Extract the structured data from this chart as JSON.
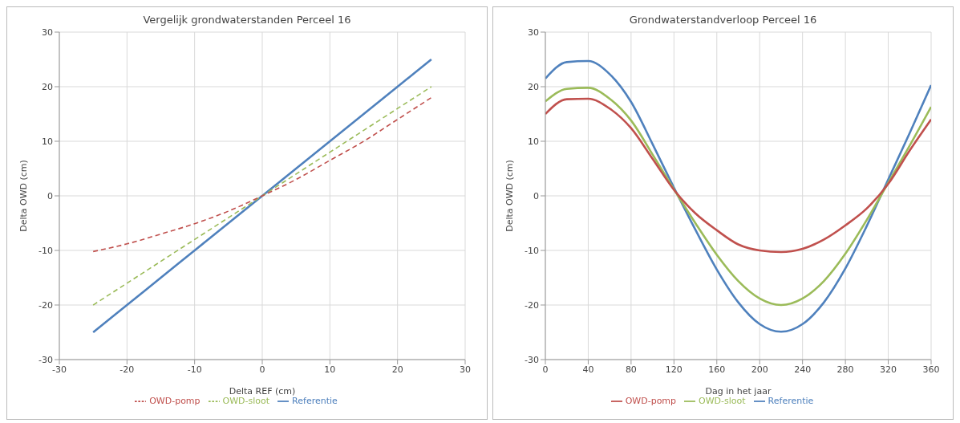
{
  "chart_data": [
    {
      "type": "line",
      "title": "Vergelijk grondwaterstanden Perceel 16",
      "xlabel": "Delta REF (cm)",
      "ylabel": "Delta OWD (cm)",
      "x": [
        -25,
        -20,
        -15,
        -10,
        -5,
        0,
        5,
        10,
        15,
        20,
        25
      ],
      "series": [
        {
          "name": "Referentie",
          "color": "#4f81bd",
          "line_style": "solid",
          "values": [
            -25,
            -20,
            -15,
            -10,
            -5,
            0,
            5,
            10,
            15,
            20,
            25
          ]
        },
        {
          "name": "OWD-sloot",
          "color": "#9bbb59",
          "line_style": "dashed",
          "values": [
            -20,
            -16,
            -12,
            -8,
            -4,
            0,
            4,
            8,
            12,
            16,
            20
          ]
        },
        {
          "name": "OWD-pomp",
          "color": "#c0504d",
          "line_style": "dashed",
          "values": [
            -10.2,
            -8.8,
            -7,
            -5.1,
            -2.8,
            0,
            3,
            6.5,
            10,
            14,
            18
          ]
        }
      ],
      "xlim": [
        -30,
        30
      ],
      "xticks": [
        -30,
        -20,
        -10,
        0,
        10,
        20,
        30
      ],
      "ylim": [
        -30,
        30
      ],
      "yticks": [
        -30,
        -20,
        -10,
        0,
        10,
        20,
        30
      ],
      "grid": true,
      "legend": "bottom"
    },
    {
      "type": "line",
      "title": "Grondwaterstandverloop Perceel 16",
      "xlabel": "Dag in het jaar",
      "ylabel": "Delta OWD (cm)",
      "x": [
        0,
        20,
        40,
        60,
        80,
        100,
        120,
        140,
        160,
        180,
        200,
        220,
        240,
        260,
        280,
        300,
        320,
        340,
        360
      ],
      "series": [
        {
          "name": "Referentie",
          "color": "#4f81bd",
          "values": [
            21.5,
            24.5,
            24.7,
            22.3,
            17.2,
            9.5,
            1.5,
            -6.2,
            -13.5,
            -19.5,
            -23.5,
            -24.9,
            -23.5,
            -19.5,
            -13.3,
            -5.5,
            3,
            11.5,
            20.3
          ]
        },
        {
          "name": "OWD-sloot",
          "color": "#9bbb59",
          "values": [
            17.3,
            19.6,
            19.8,
            17.8,
            13.8,
            7.6,
            1.2,
            -5,
            -10.8,
            -15.6,
            -18.8,
            -20,
            -18.8,
            -15.6,
            -10.6,
            -4.4,
            2.4,
            9.2,
            16.3
          ]
        },
        {
          "name": "OWD-pomp",
          "color": "#c0504d",
          "values": [
            15,
            17.7,
            17.8,
            16,
            12.4,
            6.8,
            1.1,
            -3.2,
            -6.3,
            -8.9,
            -10,
            -10.3,
            -9.7,
            -8,
            -5.4,
            -2.3,
            2.2,
            8.3,
            14
          ]
        }
      ],
      "xlim": [
        0,
        360
      ],
      "xticks": [
        0,
        40,
        80,
        120,
        160,
        200,
        240,
        280,
        320,
        360
      ],
      "ylim": [
        -30,
        30
      ],
      "yticks": [
        -30,
        -20,
        -10,
        0,
        10,
        20,
        30
      ],
      "grid": true,
      "legend": "bottom"
    }
  ]
}
